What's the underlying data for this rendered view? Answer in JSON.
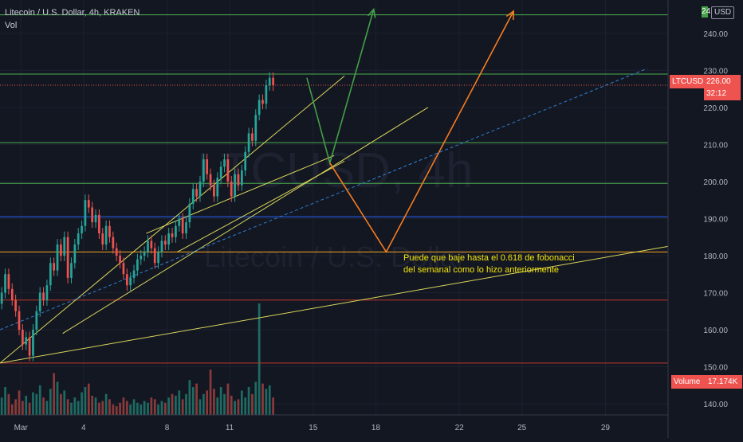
{
  "header": {
    "symbol_line": "Litecoin / U.S. Dollar, 4h, KRAKEN",
    "volume_label": "Vol"
  },
  "watermark": {
    "line1": "LTCUSD, 4h",
    "line2": "Litecoin / U.S. Dollar"
  },
  "price_scale": {
    "currency": "USD",
    "top_label_fragment": "24"
  },
  "tags": {
    "price_symbol": "LTCUSD",
    "price_value": "226.00",
    "countdown": "32:12",
    "volume_name": "Volume",
    "volume_value": "17.174K"
  },
  "annotation": {
    "line1": "Puede que baje hasta el 0.618 de fobonacci",
    "line2": "del semanal como lo hizo anteriormente"
  },
  "colors": {
    "background": "#131722",
    "bull": "#26a69a",
    "bear": "#ef5350",
    "bull_volume": "#1d6b63",
    "bear_volume": "#8a3a3a",
    "trendline": "#d8d65a",
    "green_level": "#4caf50",
    "blue_level": "#2962ff",
    "orange_level": "#f5a623",
    "red_level": "#c0392b",
    "green_arrow": "#43a047",
    "orange_arrow": "#f57c20",
    "dashed_trend": "#2f7fd0"
  },
  "chart_data": {
    "type": "candlestick",
    "title": "Litecoin / U.S. Dollar, 4h, KRAKEN",
    "x_tick_labels": [
      "Mar",
      "4",
      "8",
      "11",
      "15",
      "18",
      "22",
      "25",
      "29"
    ],
    "x_tick_days": [
      1,
      4,
      8,
      11,
      15,
      18,
      22,
      25,
      29
    ],
    "y_tick_labels": [
      "140.00",
      "150.00",
      "160.00",
      "170.00",
      "180.00",
      "190.00",
      "200.00",
      "210.00",
      "220.00",
      "230.00",
      "240.00"
    ],
    "ylim": [
      137,
      249
    ],
    "xlim_days": [
      0,
      32
    ],
    "candles_start_day": 0,
    "candle_period_hours": 4,
    "close_series": [
      170,
      175,
      171,
      168,
      165,
      160,
      156,
      158,
      153,
      160,
      165,
      170,
      168,
      172,
      178,
      176,
      183,
      180,
      185,
      174,
      178,
      183,
      186,
      188,
      195,
      193,
      189,
      191,
      186,
      183,
      188,
      185,
      182,
      180,
      178,
      175,
      172,
      174,
      176,
      179,
      180,
      181,
      184,
      182,
      178,
      181,
      184,
      183,
      186,
      185,
      188,
      190,
      186,
      189,
      194,
      198,
      196,
      200,
      206,
      202,
      199,
      196,
      201,
      204,
      206,
      200,
      196,
      202,
      199,
      203,
      208,
      213,
      211,
      218,
      222,
      221,
      226,
      228,
      226
    ],
    "volume_series": [
      0.5,
      0.8,
      0.6,
      0.3,
      0.45,
      0.7,
      0.4,
      0.55,
      0.35,
      0.65,
      0.6,
      0.85,
      0.5,
      0.4,
      0.75,
      1.2,
      0.95,
      0.6,
      0.7,
      0.45,
      0.35,
      0.5,
      0.4,
      0.65,
      0.8,
      0.9,
      0.55,
      0.5,
      0.35,
      0.4,
      0.6,
      0.45,
      0.3,
      0.25,
      0.35,
      0.5,
      0.4,
      0.3,
      0.45,
      0.35,
      0.3,
      0.4,
      0.35,
      0.5,
      0.45,
      0.3,
      0.4,
      0.35,
      0.5,
      0.6,
      0.55,
      0.7,
      0.45,
      0.6,
      1.0,
      0.8,
      0.9,
      0.45,
      0.6,
      0.7,
      1.3,
      0.75,
      0.5,
      0.8,
      0.6,
      0.9,
      0.55,
      0.4,
      0.45,
      0.7,
      0.5,
      0.8,
      0.6,
      0.95,
      3.2,
      0.9,
      0.75,
      0.85,
      0.5
    ],
    "volume_last": "17.174K",
    "horizontal_levels": [
      {
        "price": 245,
        "color": "green"
      },
      {
        "price": 229,
        "color": "green"
      },
      {
        "price": 210.5,
        "color": "green"
      },
      {
        "price": 199.5,
        "color": "green"
      },
      {
        "price": 190.5,
        "color": "blue"
      },
      {
        "price": 181,
        "color": "orange"
      },
      {
        "price": 168,
        "color": "red"
      },
      {
        "price": 151,
        "color": "red"
      }
    ],
    "trend_lines": [
      {
        "from": [
          0,
          151
        ],
        "to": [
          32,
          182.5
        ],
        "color": "yellow"
      },
      {
        "from": [
          0,
          151
        ],
        "to": [
          16.5,
          228.5
        ],
        "color": "yellow"
      },
      {
        "from": [
          3,
          159
        ],
        "to": [
          20.5,
          220
        ],
        "color": "yellow"
      },
      {
        "from": [
          8.5,
          181
        ],
        "to": [
          16.5,
          205.5
        ],
        "color": "yellow"
      },
      {
        "from": [
          7,
          186
        ],
        "to": [
          16,
          207
        ],
        "color": "yellow"
      },
      {
        "from": [
          0,
          160
        ],
        "to": [
          31,
          230.5
        ],
        "color": "dashed-blue"
      }
    ],
    "projection_paths": [
      {
        "points": [
          [
            14.7,
            228
          ],
          [
            15.8,
            205
          ],
          [
            17.9,
            246.5
          ]
        ],
        "color": "green"
      },
      {
        "points": [
          [
            15.8,
            205
          ],
          [
            18.5,
            181
          ],
          [
            24.6,
            246
          ]
        ],
        "color": "orange"
      }
    ],
    "last_price": "226.00"
  }
}
